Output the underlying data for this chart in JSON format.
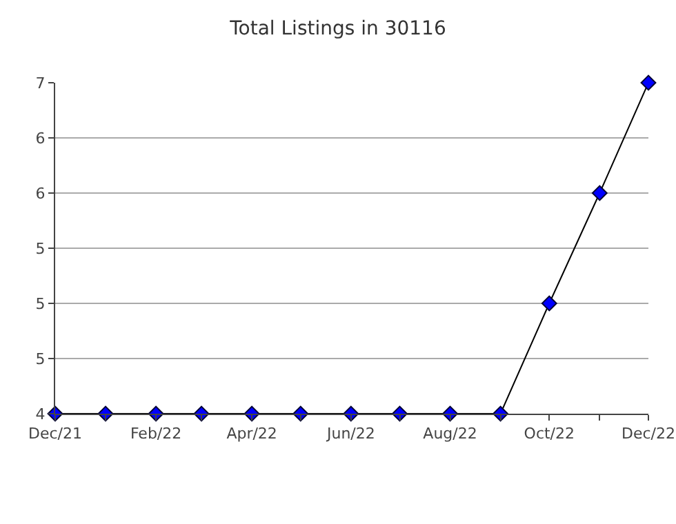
{
  "chart_data": {
    "type": "line",
    "title": "Total Listings in 30116",
    "x": [
      "2021-12",
      "2022-01",
      "2022-02",
      "2022-03",
      "2022-04",
      "2022-05",
      "2022-06",
      "2022-07",
      "2022-08",
      "2022-09",
      "2022-10",
      "2022-11",
      "2022-12"
    ],
    "series": [
      {
        "color": "#0000ff",
        "values": [
          4,
          4,
          4,
          4,
          4,
          4,
          4,
          4,
          4,
          4,
          5,
          6,
          7
        ]
      }
    ],
    "xlim": [
      "2021-12",
      "2022-12"
    ],
    "xticks": [
      {
        "value": "2021-12",
        "label": "Dec/21"
      },
      {
        "value": "2022-01",
        "label": null
      },
      {
        "value": "2022-02",
        "label": "Feb/22"
      },
      {
        "value": "2022-03",
        "label": null
      },
      {
        "value": "2022-04",
        "label": "Apr/22"
      },
      {
        "value": "2022-05",
        "label": null
      },
      {
        "value": "2022-06",
        "label": "Jun/22"
      },
      {
        "value": "2022-07",
        "label": null
      },
      {
        "value": "2022-08",
        "label": "Aug/22"
      },
      {
        "value": "2022-09",
        "label": null
      },
      {
        "value": "2022-10",
        "label": "Oct/22"
      },
      {
        "value": "2022-11",
        "label": null
      },
      {
        "value": "2022-12",
        "label": "Dec/22"
      }
    ],
    "ylim": [
      4,
      7
    ],
    "yticks": [
      4,
      {
        "value": 4.5,
        "label": "5"
      },
      5,
      {
        "value": 5.5,
        "label": "5"
      },
      6,
      {
        "value": 6.5,
        "label": "6"
      },
      7
    ],
    "grid": "y",
    "marker": "diamond",
    "line_style": "solid"
  }
}
